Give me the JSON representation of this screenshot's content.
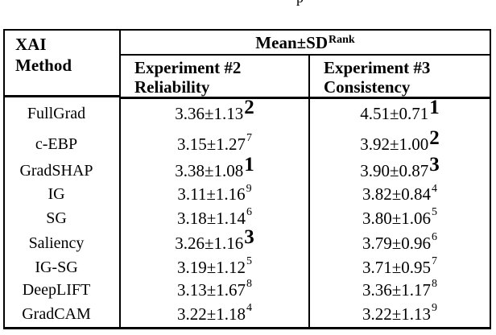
{
  "caption_fragment": "p",
  "table": {
    "corner_header": {
      "line1": "XAI",
      "line2": "Method"
    },
    "span_header": {
      "label": "Mean±SD",
      "sup": "Rank"
    },
    "columns": [
      {
        "line1": "Experiment #2",
        "line2": "Reliability"
      },
      {
        "line1": "Experiment #3",
        "line2": "Consistency"
      }
    ],
    "rows": [
      {
        "method": "FullGrad",
        "exp2": {
          "value": "3.36±1.13",
          "rank": "2",
          "rank_class": "rk rank-bold"
        },
        "exp3": {
          "value": "4.51±0.71",
          "rank": "1",
          "rank_class": "rk rank-bold"
        }
      },
      {
        "method": "c-EBP",
        "exp2": {
          "value": "3.15±1.27",
          "rank": "7",
          "rank_class": "rk rank-small"
        },
        "exp3": {
          "value": "3.92±1.00",
          "rank": "2",
          "rank_class": "rk rank-bold"
        }
      },
      {
        "method": "GradSHAP",
        "exp2": {
          "value": "3.38±1.08",
          "rank": "1",
          "rank_class": "rk rank-bold"
        },
        "exp3": {
          "value": "3.90±0.87",
          "rank": "3",
          "rank_class": "rk rank-bold"
        }
      },
      {
        "method": "IG",
        "exp2": {
          "value": "3.11±1.16",
          "rank": "9",
          "rank_class": "rk rank-small"
        },
        "exp3": {
          "value": "3.82±0.84",
          "rank": "4",
          "rank_class": "rk rank-small"
        }
      },
      {
        "method": "SG",
        "exp2": {
          "value": "3.18±1.14",
          "rank": "6",
          "rank_class": "rk rank-small"
        },
        "exp3": {
          "value": "3.80±1.06",
          "rank": "5",
          "rank_class": "rk rank-small"
        }
      },
      {
        "method": "Saliency",
        "exp2": {
          "value": "3.26±1.16",
          "rank": "3",
          "rank_class": "rk rank-bold"
        },
        "exp3": {
          "value": "3.79±0.96",
          "rank": "6",
          "rank_class": "rk rank-small"
        }
      },
      {
        "method": "IG-SG",
        "exp2": {
          "value": "3.19±1.12",
          "rank": "5",
          "rank_class": "rk rank-small"
        },
        "exp3": {
          "value": "3.71±0.95",
          "rank": "7",
          "rank_class": "rk rank-small"
        }
      },
      {
        "method": "DeepLIFT",
        "exp2": {
          "value": "3.13±1.67",
          "rank": "8",
          "rank_class": "rk rank-small"
        },
        "exp3": {
          "value": "3.36±1.17",
          "rank": "8",
          "rank_class": "rk rank-small"
        }
      },
      {
        "method": "GradCAM",
        "exp2": {
          "value": "3.22±1.18",
          "rank": "4",
          "rank_class": "rk rank-small"
        },
        "exp3": {
          "value": "3.22±1.13",
          "rank": "9",
          "rank_class": "rk rank-small"
        }
      }
    ]
  }
}
